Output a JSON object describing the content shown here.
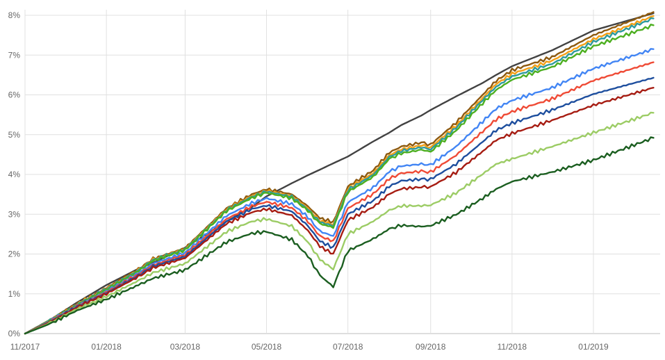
{
  "chart_data": {
    "type": "line",
    "title": "",
    "xlabel": "",
    "ylabel": "",
    "ylim": [
      0,
      8
    ],
    "yticks": [
      0,
      1,
      2,
      3,
      4,
      5,
      6,
      7,
      8
    ],
    "ytick_labels": [
      "0%",
      "1%",
      "2%",
      "3%",
      "4%",
      "5%",
      "6%",
      "7%",
      "8%"
    ],
    "xlim": [
      "2017-11-01",
      "2019-02-20"
    ],
    "x_ticks": [
      "2017-11-01",
      "2018-01-01",
      "2018-03-01",
      "2018-05-01",
      "2018-07-01",
      "2018-09-01",
      "2018-11-01",
      "2019-01-01"
    ],
    "xtick_labels": [
      "11/2017",
      "01/2018",
      "03/2018",
      "05/2018",
      "07/2018",
      "09/2018",
      "11/2018",
      "01/2019"
    ],
    "grid": true,
    "legend": "none",
    "x": [
      "2017-11-01",
      "2017-11-20",
      "2017-12-10",
      "2018-01-01",
      "2018-01-25",
      "2018-02-05",
      "2018-03-01",
      "2018-04-01",
      "2018-04-20",
      "2018-05-01",
      "2018-05-20",
      "2018-06-01",
      "2018-06-10",
      "2018-06-20",
      "2018-07-01",
      "2018-07-20",
      "2018-08-01",
      "2018-08-10",
      "2018-08-25",
      "2018-09-01",
      "2018-09-20",
      "2018-10-10",
      "2018-10-20",
      "2018-11-01",
      "2018-12-01",
      "2019-01-01",
      "2019-02-15"
    ],
    "series": [
      {
        "color": "#424242",
        "values": [
          0.0,
          0.35,
          0.78,
          1.22,
          1.63,
          1.78,
          2.16,
          2.82,
          3.18,
          3.45,
          3.78,
          3.98,
          4.12,
          4.28,
          4.45,
          4.83,
          5.05,
          5.24,
          5.48,
          5.62,
          5.96,
          6.3,
          6.5,
          6.72,
          7.12,
          7.62,
          8.05
        ]
      },
      {
        "color": "#8d5a10",
        "values": [
          0.0,
          0.35,
          0.75,
          1.15,
          1.62,
          1.88,
          2.15,
          3.15,
          3.5,
          3.63,
          3.5,
          3.2,
          2.9,
          2.8,
          3.7,
          4.1,
          4.55,
          4.7,
          4.8,
          4.75,
          5.3,
          6.0,
          6.35,
          6.62,
          6.95,
          7.5,
          8.08
        ]
      },
      {
        "color": "#f4a017",
        "values": [
          0.0,
          0.34,
          0.74,
          1.13,
          1.6,
          1.86,
          2.13,
          3.12,
          3.46,
          3.59,
          3.46,
          3.15,
          2.83,
          2.74,
          3.64,
          4.03,
          4.48,
          4.63,
          4.73,
          4.68,
          5.22,
          5.92,
          6.27,
          6.53,
          6.86,
          7.4,
          7.98
        ]
      },
      {
        "color": "#2d9a9e",
        "values": [
          0.0,
          0.34,
          0.73,
          1.12,
          1.59,
          1.85,
          2.12,
          3.1,
          3.44,
          3.57,
          3.44,
          3.12,
          2.8,
          2.71,
          3.61,
          3.99,
          4.44,
          4.59,
          4.68,
          4.63,
          5.17,
          5.87,
          6.2,
          6.46,
          6.78,
          7.33,
          7.92
        ]
      },
      {
        "color": "#4caf20",
        "values": [
          0.0,
          0.33,
          0.72,
          1.1,
          1.57,
          1.83,
          2.1,
          3.08,
          3.41,
          3.54,
          3.4,
          3.09,
          2.76,
          2.67,
          3.56,
          3.94,
          4.39,
          4.53,
          4.62,
          4.57,
          5.1,
          5.79,
          6.12,
          6.38,
          6.7,
          7.22,
          7.75
        ]
      },
      {
        "color": "#4285f4",
        "values": [
          0.0,
          0.32,
          0.7,
          1.06,
          1.52,
          1.76,
          2.03,
          2.96,
          3.28,
          3.4,
          3.26,
          2.93,
          2.57,
          2.45,
          3.3,
          3.67,
          4.07,
          4.21,
          4.26,
          4.24,
          4.7,
          5.33,
          5.65,
          5.86,
          6.18,
          6.66,
          7.15
        ]
      },
      {
        "color": "#ef4a35",
        "values": [
          0.0,
          0.31,
          0.69,
          1.04,
          1.49,
          1.72,
          1.98,
          2.88,
          3.2,
          3.31,
          3.16,
          2.82,
          2.45,
          2.32,
          3.15,
          3.51,
          3.89,
          4.03,
          4.08,
          4.06,
          4.48,
          5.08,
          5.38,
          5.58,
          5.9,
          6.36,
          6.82
        ]
      },
      {
        "color": "#1d4e9e",
        "values": [
          0.0,
          0.3,
          0.68,
          1.02,
          1.46,
          1.69,
          1.94,
          2.82,
          3.13,
          3.22,
          3.07,
          2.71,
          2.32,
          2.16,
          3.0,
          3.34,
          3.7,
          3.84,
          3.88,
          3.88,
          4.26,
          4.82,
          5.11,
          5.29,
          5.62,
          6.02,
          6.43
        ]
      },
      {
        "color": "#a61c12",
        "values": [
          0.0,
          0.29,
          0.66,
          1.0,
          1.43,
          1.65,
          1.9,
          2.76,
          3.05,
          3.13,
          2.97,
          2.59,
          2.19,
          2.0,
          2.85,
          3.18,
          3.51,
          3.64,
          3.68,
          3.69,
          4.05,
          4.58,
          4.86,
          5.03,
          5.36,
          5.74,
          6.18
        ]
      },
      {
        "color": "#9ccc65",
        "values": [
          0.0,
          0.27,
          0.62,
          0.93,
          1.33,
          1.53,
          1.76,
          2.56,
          2.82,
          2.88,
          2.7,
          2.3,
          1.86,
          1.62,
          2.5,
          2.82,
          3.1,
          3.21,
          3.21,
          3.23,
          3.53,
          4.01,
          4.26,
          4.39,
          4.7,
          5.05,
          5.55
        ]
      },
      {
        "color": "#1b5e20",
        "values": [
          0.0,
          0.25,
          0.58,
          0.86,
          1.22,
          1.39,
          1.6,
          2.3,
          2.52,
          2.56,
          2.36,
          1.95,
          1.46,
          1.18,
          2.08,
          2.38,
          2.63,
          2.72,
          2.69,
          2.71,
          2.99,
          3.4,
          3.63,
          3.82,
          4.06,
          4.36,
          4.92
        ]
      }
    ]
  }
}
